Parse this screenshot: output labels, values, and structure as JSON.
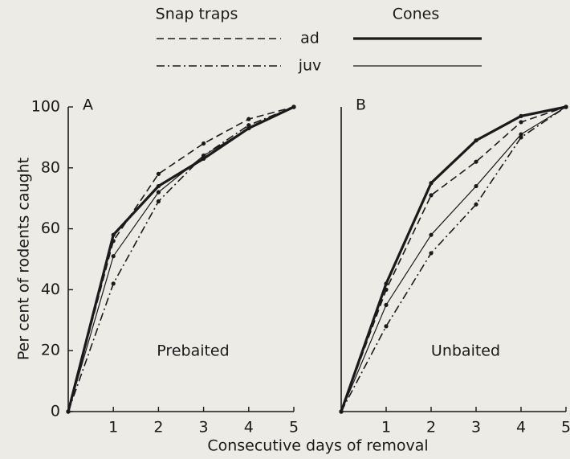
{
  "legend": {
    "columns": [
      "Snap traps",
      "Cones"
    ],
    "rows": [
      "ad",
      "juv"
    ]
  },
  "chart_data": [
    {
      "type": "line",
      "panel": "A",
      "annotation": "Prebaited",
      "ylabel": "Per cent of rodents caught",
      "xlabel": "Consecutive days of removal",
      "x": [
        0,
        1,
        2,
        3,
        4,
        5
      ],
      "xlim": [
        0,
        5
      ],
      "xticks": [
        1,
        2,
        3,
        4,
        5
      ],
      "ylim": [
        0,
        100
      ],
      "yticks": [
        0,
        20,
        40,
        60,
        80,
        100
      ],
      "series": [
        {
          "style": "dashed",
          "width": 1.6,
          "color": "#1a1a1a",
          "values": [
            0,
            56,
            78,
            88,
            96,
            100
          ]
        },
        {
          "style": "solid",
          "width": 3.2,
          "color": "#1a1a1a",
          "values": [
            0,
            58,
            74,
            83,
            93,
            100
          ]
        },
        {
          "style": "dashdot",
          "width": 1.6,
          "color": "#1a1a1a",
          "values": [
            0,
            42,
            69,
            84,
            94,
            100
          ]
        },
        {
          "style": "solid",
          "width": 1.2,
          "color": "#1a1a1a",
          "values": [
            0,
            51,
            72,
            84,
            93,
            100
          ]
        }
      ]
    },
    {
      "type": "line",
      "panel": "B",
      "annotation": "Unbaited",
      "x": [
        0,
        1,
        2,
        3,
        4,
        5
      ],
      "xlim": [
        0,
        5
      ],
      "xticks": [
        1,
        2,
        3,
        4,
        5
      ],
      "ylim": [
        0,
        100
      ],
      "series": [
        {
          "style": "dashed",
          "width": 1.6,
          "color": "#1a1a1a",
          "values": [
            0,
            40,
            71,
            82,
            95,
            100
          ]
        },
        {
          "style": "solid",
          "width": 3.2,
          "color": "#1a1a1a",
          "values": [
            0,
            42,
            75,
            89,
            97,
            100
          ]
        },
        {
          "style": "dashdot",
          "width": 1.6,
          "color": "#1a1a1a",
          "values": [
            0,
            28,
            52,
            68,
            90,
            100
          ]
        },
        {
          "style": "solid",
          "width": 1.2,
          "color": "#1a1a1a",
          "values": [
            0,
            35,
            58,
            74,
            91,
            100
          ]
        }
      ]
    }
  ]
}
